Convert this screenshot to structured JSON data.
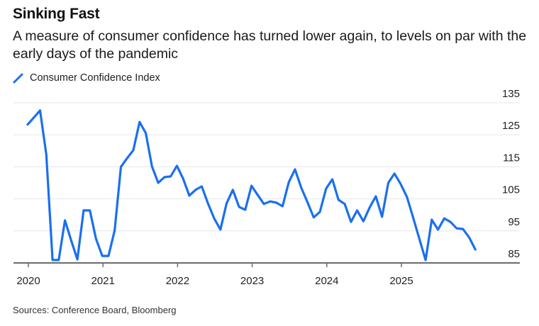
{
  "header": {
    "title": "Sinking Fast",
    "subtitle": "A measure of consumer confidence has turned lower again, to levels on par with the early days of the pandemic"
  },
  "legend": {
    "items": [
      {
        "label": "Consumer Confidence Index",
        "color": "#1a6ff0",
        "icon": "diagonal-line-icon"
      }
    ]
  },
  "footer": {
    "source": "Sources: Conference Board, Bloomberg"
  },
  "chart_data": {
    "type": "line",
    "title": "Sinking Fast",
    "subtitle": "A measure of consumer confidence has turned lower again, to levels on par with the early days of the pandemic",
    "xlabel": "",
    "ylabel": "",
    "y_axis_side": "right",
    "ylim": [
      85,
      135
    ],
    "yticks": [
      85,
      95,
      105,
      115,
      125,
      135
    ],
    "xticks": [
      "2020",
      "2021",
      "2022",
      "2023",
      "2024",
      "2025"
    ],
    "grid": true,
    "legend_position": "top-left",
    "x_start": "2019-12",
    "x_end": "2025-12",
    "frequency": "monthly",
    "series": [
      {
        "name": "Consumer Confidence Index",
        "color": "#1a6ff0",
        "x": [
          "2019-12",
          "2020-01",
          "2020-02",
          "2020-03",
          "2020-04",
          "2020-05",
          "2020-06",
          "2020-07",
          "2020-08",
          "2020-09",
          "2020-10",
          "2020-11",
          "2020-12",
          "2021-01",
          "2021-02",
          "2021-03",
          "2021-04",
          "2021-05",
          "2021-06",
          "2021-07",
          "2021-08",
          "2021-09",
          "2021-10",
          "2021-11",
          "2021-12",
          "2022-01",
          "2022-02",
          "2022-03",
          "2022-04",
          "2022-05",
          "2022-06",
          "2022-07",
          "2022-08",
          "2022-09",
          "2022-10",
          "2022-11",
          "2022-12",
          "2023-01",
          "2023-02",
          "2023-03",
          "2023-04",
          "2023-05",
          "2023-06",
          "2023-07",
          "2023-08",
          "2023-09",
          "2023-10",
          "2023-11",
          "2023-12",
          "2024-01",
          "2024-02",
          "2024-03",
          "2024-04",
          "2024-05",
          "2024-06",
          "2024-07",
          "2024-08",
          "2024-09",
          "2024-10",
          "2024-11",
          "2024-12",
          "2025-01",
          "2025-02",
          "2025-03",
          "2025-04",
          "2025-05",
          "2025-06",
          "2025-07",
          "2025-08",
          "2025-09",
          "2025-10",
          "2025-11",
          "2025-12"
        ],
        "values": [
          128.2,
          130.4,
          132.6,
          118.8,
          85.9,
          85.9,
          98.3,
          92.0,
          86.1,
          101.4,
          101.4,
          92.5,
          87.2,
          87.2,
          95.2,
          115.0,
          117.7,
          120.2,
          129.0,
          125.5,
          115.1,
          110.0,
          111.8,
          112.0,
          115.3,
          111.3,
          106.0,
          107.8,
          108.9,
          103.6,
          98.9,
          95.4,
          103.6,
          107.8,
          102.5,
          101.6,
          109.1,
          106.2,
          103.4,
          104.2,
          103.8,
          102.7,
          110.2,
          114.2,
          108.5,
          104.0,
          99.2,
          100.9,
          108.2,
          111.1,
          104.7,
          103.4,
          97.8,
          101.4,
          98.0,
          102.3,
          105.8,
          99.4,
          110.0,
          112.9,
          109.6,
          105.6,
          99.2,
          92.5,
          85.9,
          98.5,
          95.4,
          98.9,
          97.8,
          95.8,
          95.6,
          93.0,
          89.2
        ]
      }
    ]
  }
}
